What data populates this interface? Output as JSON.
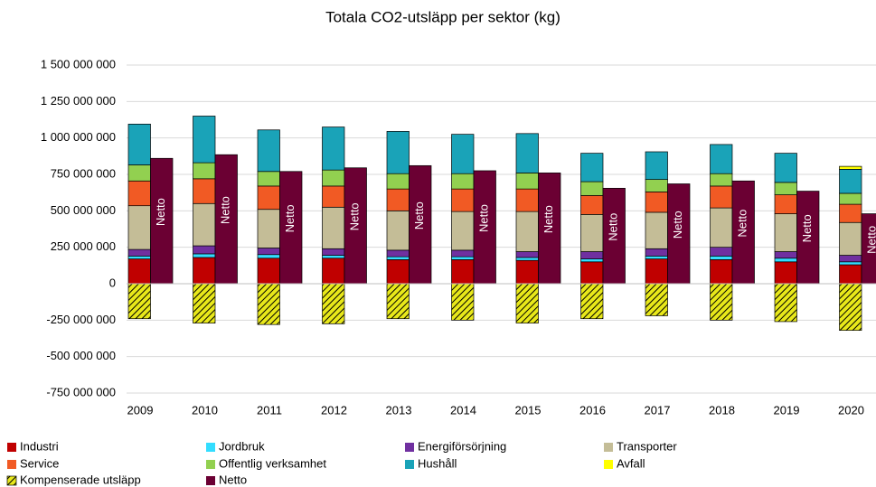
{
  "chart_data": {
    "type": "stacked-bar",
    "title": "Totala CO2-utsläpp per sektor (kg)",
    "categories": [
      "2009",
      "2010",
      "2011",
      "2012",
      "2013",
      "2014",
      "2015",
      "2016",
      "2017",
      "2018",
      "2019",
      "2020"
    ],
    "series": [
      {
        "name": "Industri",
        "color": "#c00000",
        "stack": "sektor",
        "values": [
          170000000,
          180000000,
          175000000,
          175000000,
          165000000,
          165000000,
          160000000,
          150000000,
          170000000,
          165000000,
          150000000,
          130000000
        ]
      },
      {
        "name": "Jordbruk",
        "color": "#33ddff",
        "stack": "sektor",
        "values": [
          20000000,
          25000000,
          25000000,
          20000000,
          20000000,
          20000000,
          20000000,
          20000000,
          20000000,
          25000000,
          25000000,
          20000000
        ]
      },
      {
        "name": "Energiförsörjning",
        "color": "#7030a0",
        "stack": "sektor",
        "values": [
          45000000,
          55000000,
          45000000,
          45000000,
          45000000,
          45000000,
          40000000,
          50000000,
          50000000,
          60000000,
          45000000,
          45000000
        ]
      },
      {
        "name": "Transporter",
        "color": "#c4bd97",
        "stack": "sektor",
        "values": [
          300000000,
          290000000,
          265000000,
          285000000,
          270000000,
          265000000,
          275000000,
          255000000,
          250000000,
          270000000,
          260000000,
          225000000
        ]
      },
      {
        "name": "Service",
        "color": "#f15a24",
        "stack": "sektor",
        "values": [
          170000000,
          170000000,
          160000000,
          145000000,
          150000000,
          155000000,
          155000000,
          130000000,
          140000000,
          150000000,
          130000000,
          125000000
        ]
      },
      {
        "name": "Offentlig verksamhet",
        "color": "#92d050",
        "stack": "sektor",
        "values": [
          110000000,
          110000000,
          100000000,
          110000000,
          105000000,
          105000000,
          110000000,
          95000000,
          85000000,
          85000000,
          85000000,
          75000000
        ]
      },
      {
        "name": "Hushåll",
        "color": "#1aa3b8",
        "stack": "sektor",
        "values": [
          280000000,
          320000000,
          285000000,
          295000000,
          290000000,
          270000000,
          270000000,
          195000000,
          190000000,
          200000000,
          200000000,
          165000000
        ]
      },
      {
        "name": "Avfall",
        "color": "#ffff00",
        "stack": "sektor",
        "values": [
          0,
          0,
          0,
          0,
          0,
          0,
          0,
          0,
          0,
          0,
          0,
          20000000
        ]
      },
      {
        "name": "Kompenserade utsläpp",
        "color": "#e8e81a",
        "stack": "sektor",
        "hatch": true,
        "values": [
          -240000000,
          -270000000,
          -280000000,
          -275000000,
          -240000000,
          -250000000,
          -270000000,
          -240000000,
          -220000000,
          -250000000,
          -260000000,
          -320000000
        ]
      },
      {
        "name": "Netto",
        "color": "#6b0033",
        "stack": "netto",
        "values": [
          860000000,
          885000000,
          770000000,
          795000000,
          810000000,
          775000000,
          760000000,
          655000000,
          685000000,
          705000000,
          635000000,
          480000000
        ]
      }
    ],
    "ylim": [
      -750000000,
      1500000000
    ],
    "yticks": [
      {
        "value": -750000000,
        "label": "-750 000 000"
      },
      {
        "value": -500000000,
        "label": "-500 000 000"
      },
      {
        "value": -250000000,
        "label": "-250 000 000"
      },
      0,
      {
        "value": 250000000,
        "label": "250 000 000"
      },
      {
        "value": 500000000,
        "label": "500 000 000"
      },
      {
        "value": 750000000,
        "label": "750 000 000"
      },
      {
        "value": 1000000000,
        "label": "1 000 000 000"
      },
      {
        "value": 1250000000,
        "label": "1 250 000 000"
      },
      {
        "value": 1500000000,
        "label": "1 500 000 000"
      }
    ],
    "grid": true,
    "legend": "bottom"
  }
}
